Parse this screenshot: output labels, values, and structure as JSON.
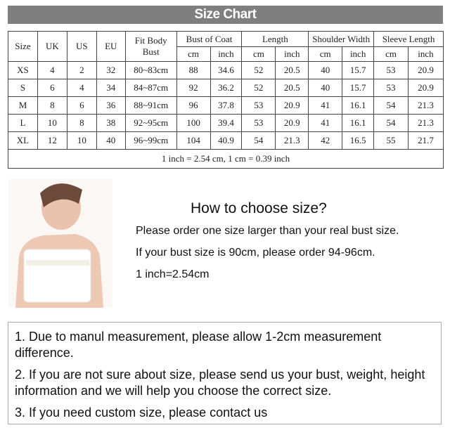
{
  "title": "Size Chart",
  "headers": {
    "size": "Size",
    "uk": "UK",
    "us": "US",
    "eu": "EU",
    "fit": "Fit Body Bust",
    "bust": "Bust of Coat",
    "length": "Length",
    "shoulder": "Shoulder Width",
    "sleeve": "Sleeve Length",
    "cm": "cm",
    "inch": "inch"
  },
  "rows": [
    [
      "XS",
      "4",
      "2",
      "32",
      "80~83cm",
      "88",
      "34.6",
      "52",
      "20.5",
      "40",
      "15.7",
      "53",
      "20.9"
    ],
    [
      "S",
      "6",
      "4",
      "34",
      "84~87cm",
      "92",
      "36.2",
      "52",
      "20.5",
      "40",
      "15.7",
      "53",
      "20.9"
    ],
    [
      "M",
      "8",
      "6",
      "36",
      "88~91cm",
      "96",
      "37.8",
      "53",
      "20.9",
      "41",
      "16.1",
      "54",
      "21.3"
    ],
    [
      "L",
      "10",
      "8",
      "38",
      "92~95cm",
      "100",
      "39.4",
      "53",
      "20.9",
      "41",
      "16.1",
      "54",
      "21.3"
    ],
    [
      "XL",
      "12",
      "10",
      "40",
      "96~99cm",
      "104",
      "40.9",
      "54",
      "21.3",
      "42",
      "16.5",
      "55",
      "21.7"
    ]
  ],
  "conversion": "1 inch = 2.54 cm, 1 cm = 0.39 inch",
  "guide": {
    "heading": "How to choose size?",
    "lines": [
      "Please order one size larger than your real bust size.",
      "If your bust size is 90cm, please order 94-96cm.",
      "1 inch=2.54cm"
    ]
  },
  "notes": [
    "1. Due to manul measurement, please allow 1-2cm measurement difference.",
    "2. If you are not sure about size, please send us your bust, weight, height information and we will help you choose the correct size.",
    "3. If you need custom size, please contact us"
  ]
}
